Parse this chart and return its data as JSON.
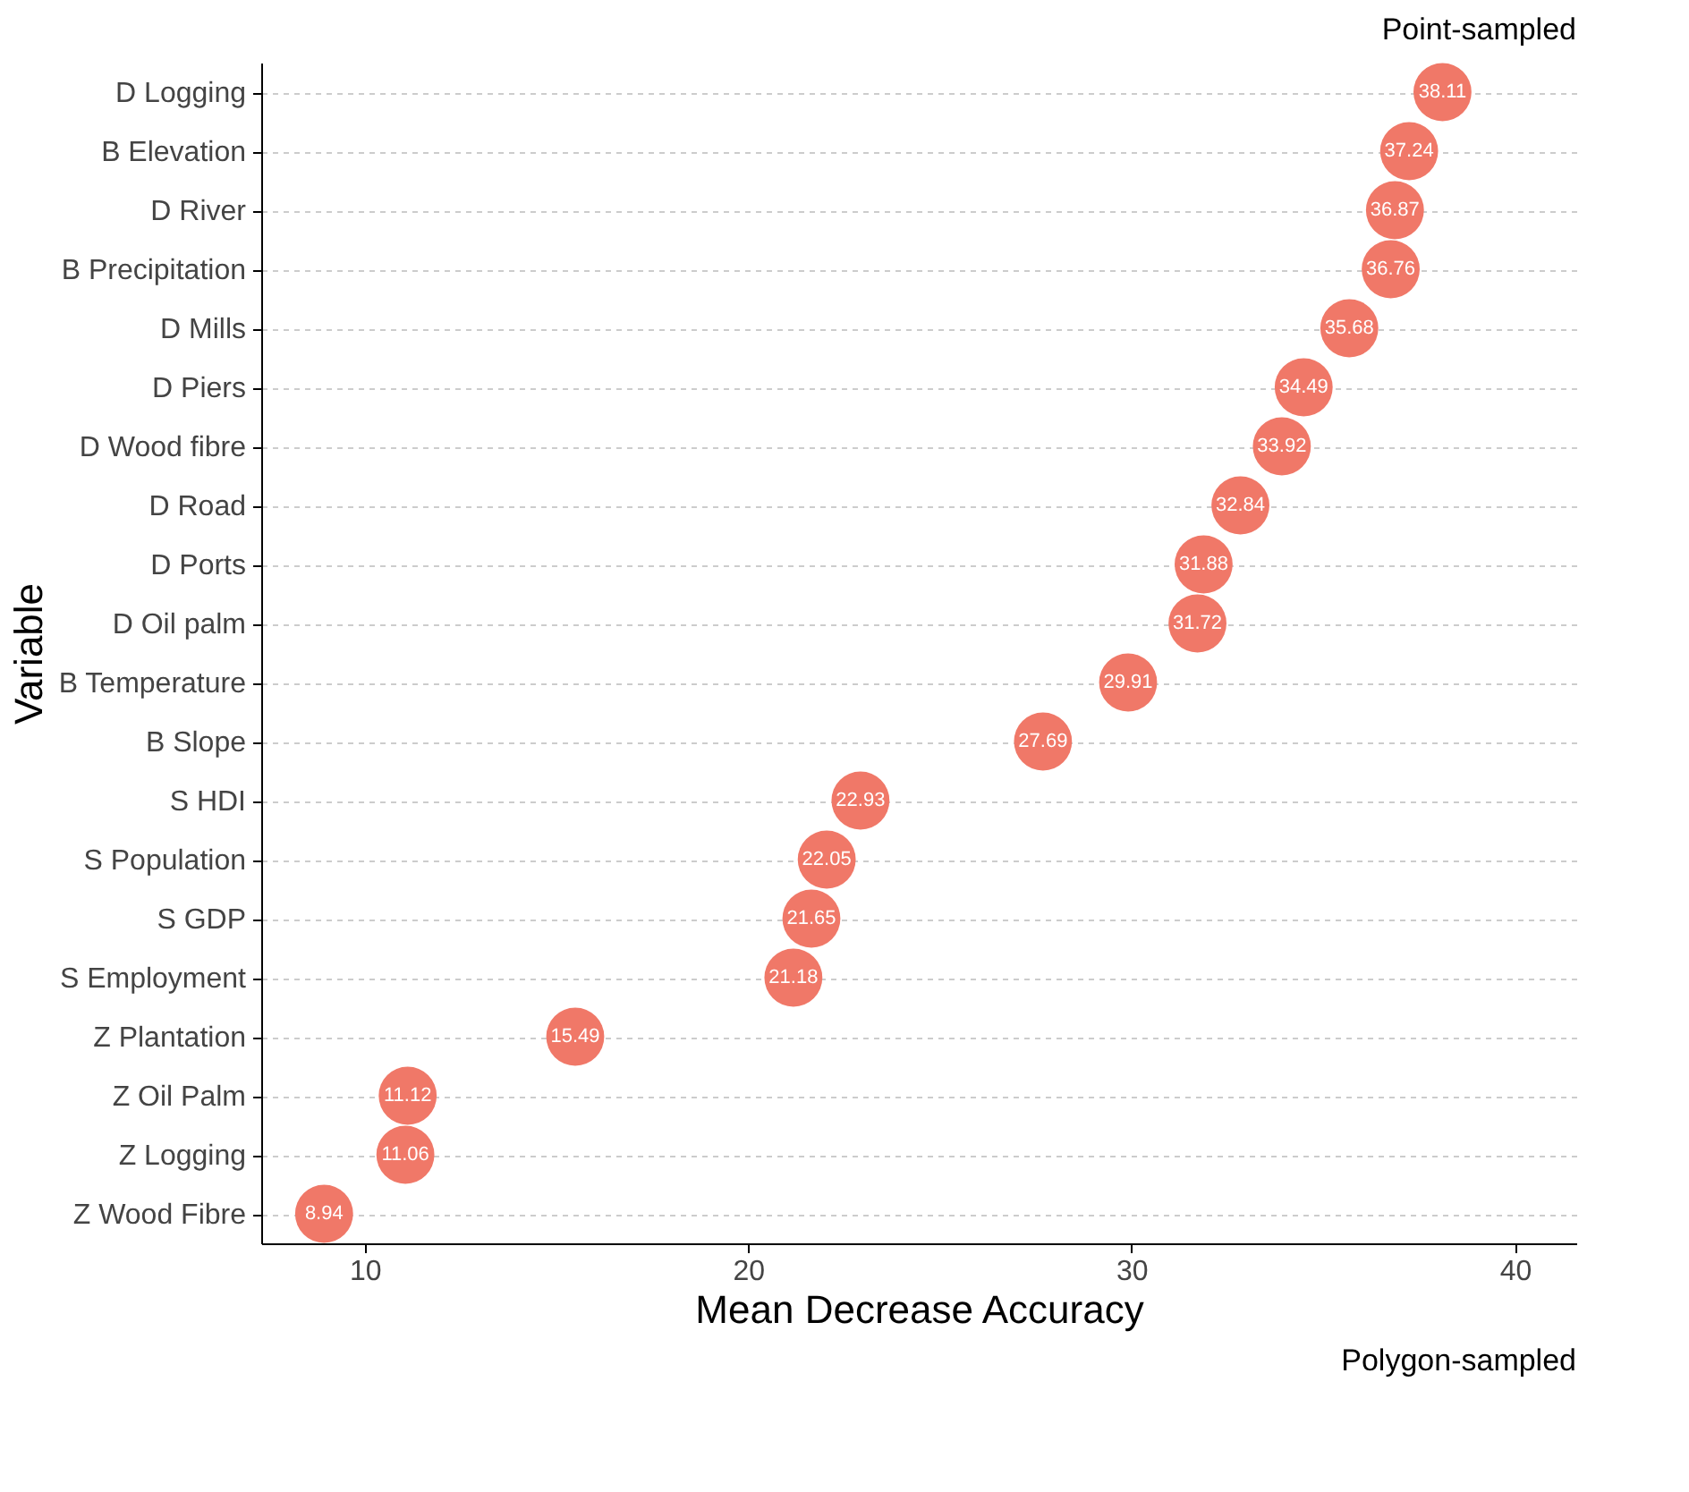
{
  "chart_data": {
    "type": "scatter",
    "orientation": "horizontal",
    "xlabel": "Mean Decrease Accuracy",
    "ylabel": "Variable",
    "categories": [
      "D Logging",
      "B Elevation",
      "D River",
      "B Precipitation",
      "D Mills",
      "D Piers",
      "D Wood fibre",
      "D Road",
      "D Ports",
      "D Oil palm",
      "B Temperature",
      "B Slope",
      "S HDI",
      "S Population",
      "S GDP",
      "S Employment",
      "Z Plantation",
      "Z Oil Palm",
      "Z Logging",
      "Z Wood Fibre"
    ],
    "values": [
      38.11,
      37.24,
      36.87,
      36.76,
      35.68,
      34.49,
      33.92,
      32.84,
      31.88,
      31.72,
      29.91,
      27.69,
      22.93,
      22.05,
      21.65,
      21.18,
      15.49,
      11.12,
      11.06,
      8.94
    ],
    "color": "#f07868",
    "xlim": [
      7.3,
      41.6
    ],
    "xticks": [
      10,
      20,
      30,
      40
    ],
    "grid": "y",
    "data_labels": true,
    "marker": "circle",
    "annotations": [
      "Point-sampled",
      "Polygon-sampled"
    ]
  }
}
